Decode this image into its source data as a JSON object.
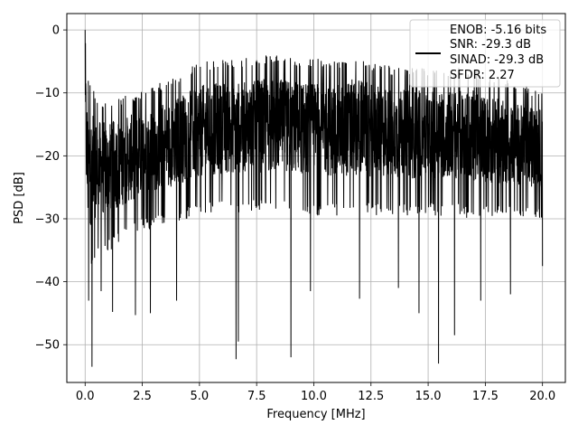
{
  "chart_data": {
    "type": "line",
    "title": "",
    "xlabel": "Frequency [MHz]",
    "ylabel": "PSD [dB]",
    "xlim": [
      -0.8,
      21.0
    ],
    "ylim": [
      -56.0,
      2.6
    ],
    "xticks": [
      0.0,
      2.5,
      5.0,
      7.5,
      10.0,
      12.5,
      15.0,
      17.5,
      20.0
    ],
    "xtick_labels": [
      "0.0",
      "2.5",
      "5.0",
      "7.5",
      "10.0",
      "12.5",
      "15.0",
      "17.5",
      "20.0"
    ],
    "yticks": [
      0,
      -10,
      -20,
      -30,
      -40,
      -50
    ],
    "ytick_labels": [
      "0",
      "−10",
      "−20",
      "−30",
      "−40",
      "−50"
    ],
    "grid": true,
    "legend_position": "top-right",
    "legend_lines": [
      "ENOB: -5.16 bits",
      "SNR: -29.3 dB",
      "SINAD: -29.3 dB",
      "SFDR: 2.27"
    ],
    "line_color": "#000000",
    "series": [
      {
        "x_range": [
          0.0,
          20.0
        ],
        "upper_envelope": {
          "x": [
            0.0,
            0.1,
            0.3,
            0.5,
            1.0,
            1.5,
            2.0,
            2.5,
            3.0,
            3.5,
            4.0,
            4.5,
            5.0,
            5.5,
            6.0,
            7.0,
            8.0,
            9.0,
            10.0,
            11.0,
            12.0,
            12.5,
            13.0,
            14.0,
            15.0,
            16.0,
            17.0,
            17.5,
            18.0,
            19.0,
            19.5,
            20.0
          ],
          "y": [
            0.0,
            -7.0,
            -9.0,
            -10.5,
            -11.0,
            -10.5,
            -10.0,
            -9.5,
            -8.5,
            -8.0,
            -7.0,
            -6.0,
            -5.0,
            -5.0,
            -4.5,
            -4.5,
            -4.0,
            -4.2,
            -4.5,
            -5.0,
            -3.5,
            -5.0,
            -5.5,
            -6.0,
            -6.0,
            -6.0,
            -6.0,
            -7.0,
            -7.5,
            -8.5,
            -9.0,
            -9.5
          ]
        },
        "lower_envelope": {
          "x": [
            0.0,
            0.1,
            0.3,
            0.5,
            1.0,
            1.5,
            2.0,
            2.5,
            3.0,
            3.5,
            4.0,
            4.5,
            5.0,
            6.0,
            7.0,
            8.0,
            9.0,
            10.0,
            11.0,
            12.0,
            13.0,
            14.0,
            15.0,
            16.0,
            17.0,
            18.0,
            19.0,
            20.0
          ],
          "y": [
            -27.0,
            -40.0,
            -38.0,
            -36.0,
            -35.5,
            -34.0,
            -33.0,
            -32.0,
            -31.5,
            -31.0,
            -30.5,
            -30.0,
            -29.5,
            -29.0,
            -29.0,
            -29.0,
            -29.0,
            -29.5,
            -29.5,
            -29.5,
            -29.5,
            -29.5,
            -29.5,
            -29.5,
            -30.0,
            -30.0,
            -30.0,
            -30.5
          ]
        },
        "deep_dips": [
          {
            "x": 0.15,
            "y": -43.0
          },
          {
            "x": 0.3,
            "y": -53.5
          },
          {
            "x": 0.7,
            "y": -41.5
          },
          {
            "x": 1.2,
            "y": -44.8
          },
          {
            "x": 2.2,
            "y": -45.3
          },
          {
            "x": 2.85,
            "y": -45.0
          },
          {
            "x": 4.0,
            "y": -43.0
          },
          {
            "x": 6.6,
            "y": -52.3
          },
          {
            "x": 6.7,
            "y": -49.5
          },
          {
            "x": 9.0,
            "y": -52.0
          },
          {
            "x": 9.85,
            "y": -41.5
          },
          {
            "x": 12.0,
            "y": -42.7
          },
          {
            "x": 13.7,
            "y": -41.0
          },
          {
            "x": 14.6,
            "y": -45.0
          },
          {
            "x": 15.45,
            "y": -53.0
          },
          {
            "x": 16.15,
            "y": -48.5
          },
          {
            "x": 17.3,
            "y": -43.0
          },
          {
            "x": 18.6,
            "y": -42.0
          },
          {
            "x": 20.0,
            "y": -37.5
          }
        ]
      }
    ]
  }
}
